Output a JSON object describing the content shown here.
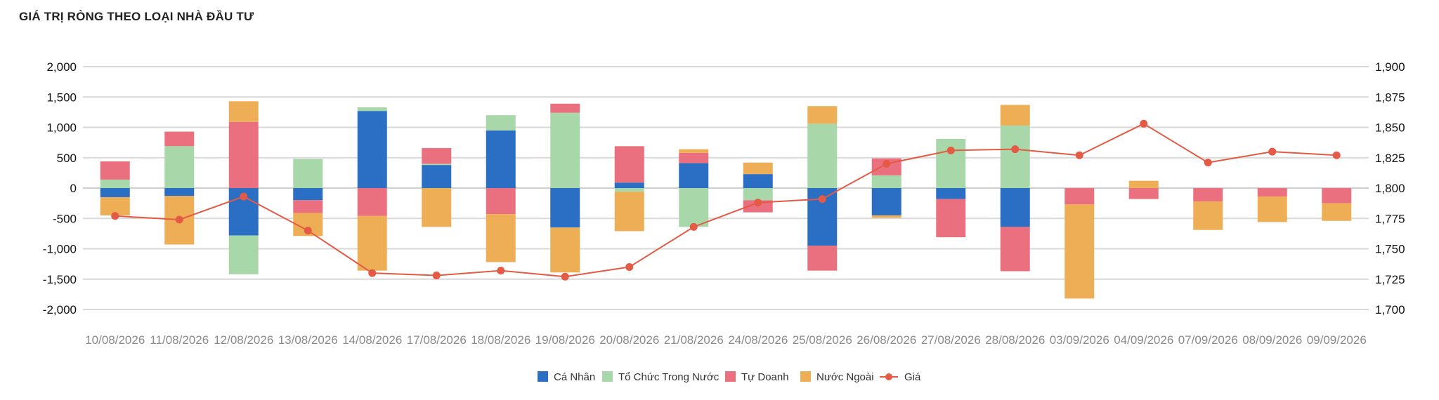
{
  "chart_data": {
    "type": "bar",
    "stacked": true,
    "title": "GIÁ TRỊ RÒNG THEO LOẠI NHÀ ĐẦU TƯ",
    "categories": [
      "10/08/2026",
      "11/08/2026",
      "12/08/2026",
      "13/08/2026",
      "14/08/2026",
      "17/08/2026",
      "18/08/2026",
      "19/08/2026",
      "20/08/2026",
      "21/08/2026",
      "24/08/2026",
      "25/08/2026",
      "26/08/2026",
      "27/08/2026",
      "28/08/2026",
      "03/09/2026",
      "04/09/2026",
      "07/09/2026",
      "08/09/2026",
      "09/09/2026"
    ],
    "y_left": {
      "ylim": [
        -2000,
        2000
      ],
      "ticks": [
        -2000,
        -1500,
        -1000,
        -500,
        0,
        500,
        1000,
        1500,
        2000
      ],
      "tick_labels": [
        "-2,000",
        "-1,500",
        "-1,000",
        "-500",
        "0",
        "500",
        "1,000",
        "1,500",
        "2,000"
      ]
    },
    "y_right": {
      "ylim": [
        1700,
        1900
      ],
      "ticks": [
        1700,
        1725,
        1750,
        1775,
        1800,
        1825,
        1850,
        1875,
        1900
      ],
      "tick_labels": [
        "1,700",
        "1,725",
        "1,750",
        "1,775",
        "1,800",
        "1,825",
        "1,850",
        "1,875",
        "1,900"
      ]
    },
    "grid": true,
    "legend_position": "bottom",
    "series": [
      {
        "name": "Cá Nhân",
        "color": "#2a6fc4",
        "type": "bar",
        "values": [
          -150,
          -130,
          -780,
          -200,
          1270,
          380,
          950,
          -650,
          90,
          410,
          230,
          -950,
          -450,
          -180,
          -640,
          0,
          0,
          0,
          0,
          0
        ]
      },
      {
        "name": "Tổ Chức Trong Nước",
        "color": "#a8d8a9",
        "type": "bar",
        "values": [
          140,
          690,
          -640,
          480,
          60,
          20,
          250,
          1240,
          -60,
          -640,
          -200,
          1060,
          210,
          810,
          1030,
          0,
          0,
          0,
          0,
          0
        ]
      },
      {
        "name": "Tự Doanh",
        "color": "#ea7080",
        "type": "bar",
        "values": [
          300,
          240,
          1090,
          -210,
          -460,
          260,
          -430,
          150,
          600,
          170,
          -200,
          -410,
          280,
          -630,
          -730,
          -270,
          -180,
          -220,
          -140,
          -250
        ]
      },
      {
        "name": "Nước Ngoài",
        "color": "#edae55",
        "type": "bar",
        "values": [
          -300,
          -800,
          340,
          -380,
          -900,
          -640,
          -790,
          -740,
          -650,
          60,
          190,
          290,
          -40,
          0,
          340,
          -1550,
          120,
          -470,
          -420,
          -290
        ]
      },
      {
        "name": "Giá",
        "color": "#e45a44",
        "type": "line",
        "axis": "right",
        "values": [
          1777,
          1774,
          1793,
          1765,
          1730,
          1728,
          1732,
          1727,
          1735,
          1768,
          1788,
          1791,
          1820,
          1831,
          1832,
          1827,
          1853,
          1821,
          1830,
          1827
        ]
      }
    ]
  }
}
